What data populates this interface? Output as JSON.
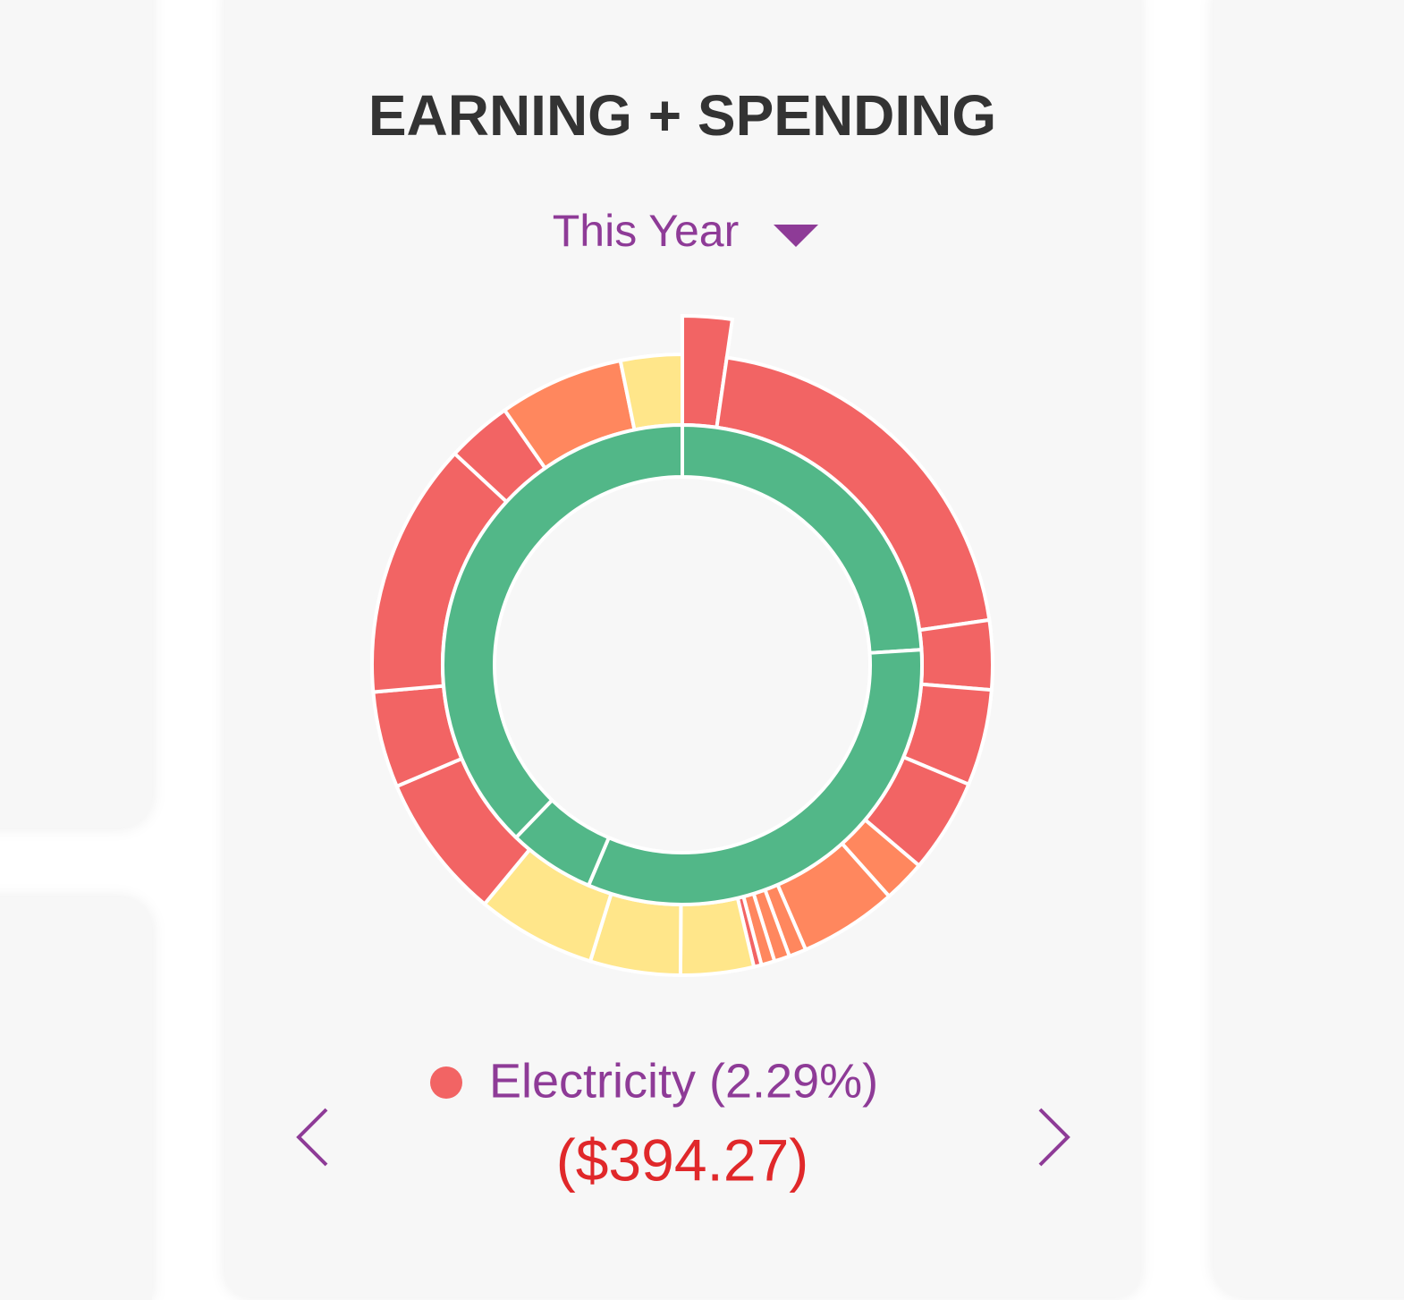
{
  "header": {
    "title": "EARNING + SPENDING",
    "period": "This Year"
  },
  "chart_data": {
    "type": "donut",
    "highlight": 0,
    "series": [
      {
        "values": [
          2.29,
          20.4,
          3.6,
          5.0,
          4.9,
          2.2,
          5.1,
          0.9,
          0.8,
          0.7,
          0.4,
          3.8,
          4.7,
          6.2,
          7.6,
          5.0,
          13.3,
          3.4,
          6.5,
          3.2
        ],
        "colors": [
          "#f26464",
          "#f26464",
          "#f26464",
          "#f26464",
          "#f26464",
          "#ff875e",
          "#ff875e",
          "#ff875e",
          "#ff875e",
          "#ff875e",
          "#f26464",
          "#ffe68a",
          "#ffe68a",
          "#ffe68a",
          "#f26464",
          "#f26464",
          "#f26464",
          "#f26464",
          "#ff875e",
          "#ffe68a"
        ]
      },
      {
        "values": [
          24.0,
          32.4,
          5.8,
          37.8
        ],
        "colors": [
          "#52b788",
          "#52b788",
          "#52b788",
          "#52b788"
        ]
      }
    ]
  },
  "selection": {
    "label": "Electricity (2.29%)",
    "amount": "($394.27)",
    "color": "#f26464"
  }
}
